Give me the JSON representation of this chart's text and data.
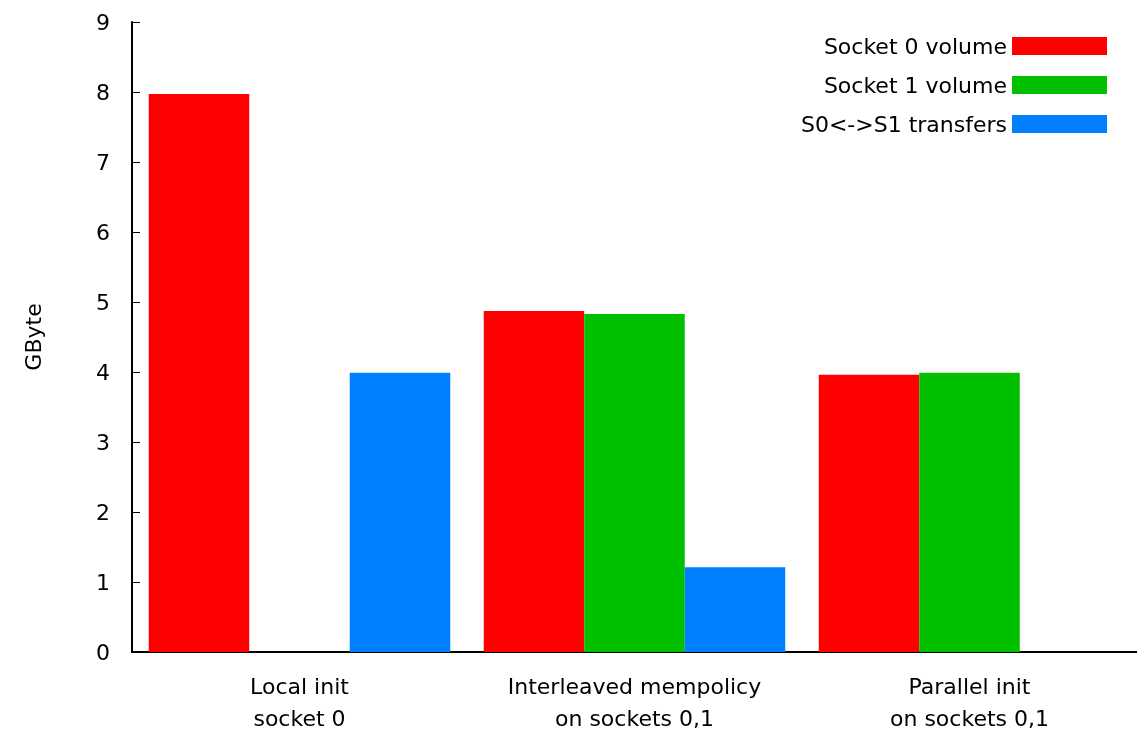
{
  "chart_data": {
    "type": "bar",
    "ylabel": "GByte",
    "categories": [
      "Local init\nsocket 0",
      "Interleaved mempolicy\non sockets 0,1",
      "Parallel init\non sockets 0,1"
    ],
    "series": [
      {
        "name": "Socket 0 volume",
        "color": "#ff0000",
        "values": [
          7.97,
          4.87,
          3.96
        ]
      },
      {
        "name": "Socket 1 volume",
        "color": "#00c000",
        "values": [
          0,
          4.83,
          3.99
        ]
      },
      {
        "name": "S0<->S1 transfers",
        "color": "#0080ff",
        "values": [
          3.99,
          1.21,
          null
        ]
      }
    ],
    "ylim": [
      0,
      9
    ],
    "yticks": [
      0,
      1,
      2,
      3,
      4,
      5,
      6,
      7,
      8,
      9
    ],
    "grid": false,
    "legend": "top right"
  }
}
